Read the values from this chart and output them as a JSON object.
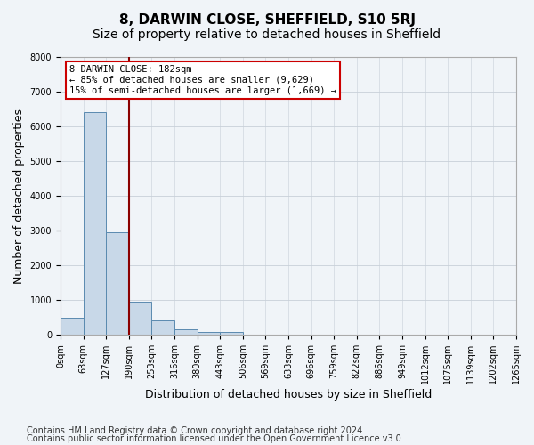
{
  "title_line1": "8, DARWIN CLOSE, SHEFFIELD, S10 5RJ",
  "title_line2": "Size of property relative to detached houses in Sheffield",
  "xlabel": "Distribution of detached houses by size in Sheffield",
  "ylabel": "Number of detached properties",
  "annotation_line1": "8 DARWIN CLOSE: 182sqm",
  "annotation_line2": "← 85% of detached houses are smaller (9,629)",
  "annotation_line3": "15% of semi-detached houses are larger (1,669) →",
  "footer_line1": "Contains HM Land Registry data © Crown copyright and database right 2024.",
  "footer_line2": "Contains public sector information licensed under the Open Government Licence v3.0.",
  "tick_labels": [
    "0sqm",
    "63sqm",
    "127sqm",
    "190sqm",
    "253sqm",
    "316sqm",
    "380sqm",
    "443sqm",
    "506sqm",
    "569sqm",
    "633sqm",
    "696sqm",
    "759sqm",
    "822sqm",
    "886sqm",
    "949sqm",
    "1012sqm",
    "1075sqm",
    "1139sqm",
    "1202sqm",
    "1265sqm"
  ],
  "values": [
    480,
    6400,
    2950,
    950,
    420,
    160,
    90,
    80,
    0,
    0,
    0,
    0,
    0,
    0,
    0,
    0,
    0,
    0,
    0,
    0
  ],
  "bar_color": "#c8d8e8",
  "bar_edge_color": "#5a8ab0",
  "vline_x": 3,
  "vline_color": "#8b0000",
  "grid_color": "#c8d0d8",
  "background_color": "#f0f4f8",
  "ylim": [
    0,
    8000
  ],
  "yticks": [
    0,
    1000,
    2000,
    3000,
    4000,
    5000,
    6000,
    7000,
    8000
  ],
  "annotation_box_color": "#ffffff",
  "annotation_box_edge": "#cc0000",
  "title_fontsize": 11,
  "subtitle_fontsize": 10,
  "tick_fontsize": 7,
  "label_fontsize": 9,
  "footer_fontsize": 7
}
